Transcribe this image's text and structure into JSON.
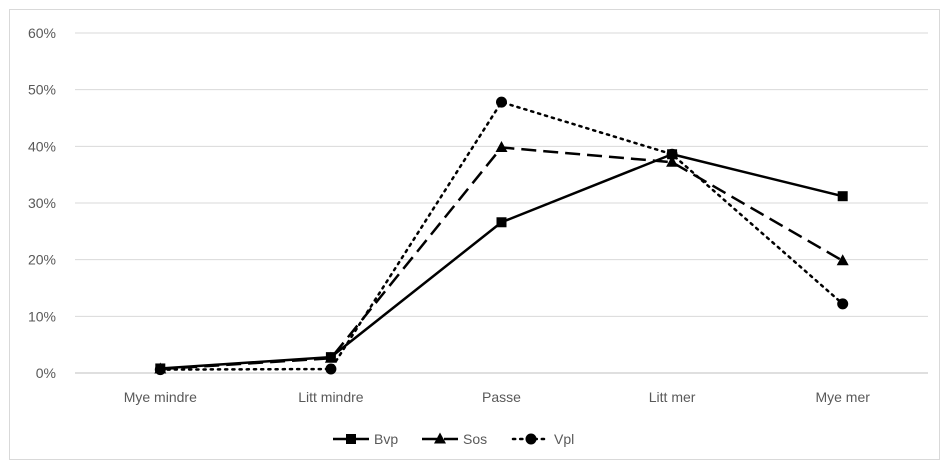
{
  "chart_data": {
    "type": "line",
    "title": "",
    "xlabel": "",
    "ylabel": "",
    "categories": [
      "Mye mindre",
      "Litt mindre",
      "Passe",
      "Litt mer",
      "Mye mer"
    ],
    "ylim": [
      0,
      60
    ],
    "yticks": [
      "0%",
      "10%",
      "20%",
      "30%",
      "40%",
      "50%",
      "60%"
    ],
    "y_unit": "%",
    "grid": "horizontal",
    "legend_position": "bottom",
    "series": [
      {
        "name": "Bvp",
        "values": [
          0.8,
          2.8,
          26.6,
          38.6,
          31.2
        ],
        "line_style": "solid",
        "marker": "square",
        "color": "#000000"
      },
      {
        "name": "Sos",
        "values": [
          0.7,
          2.6,
          39.8,
          37.2,
          19.8
        ],
        "line_style": "dashed",
        "marker": "triangle",
        "color": "#000000"
      },
      {
        "name": "Vpl",
        "values": [
          0.6,
          0.7,
          47.8,
          38.6,
          12.2
        ],
        "line_style": "dotted",
        "marker": "circle",
        "color": "#000000"
      }
    ]
  }
}
